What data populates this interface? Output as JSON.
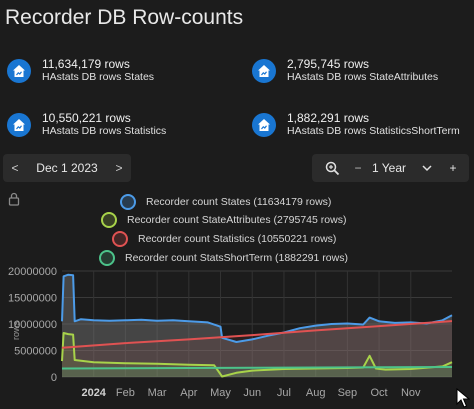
{
  "page": {
    "title": "Recorder DB Row-counts"
  },
  "stats": [
    {
      "value": "11,634,179 rows",
      "label": "HAstats DB rows States"
    },
    {
      "value": "2,795,745 rows",
      "label": "HAstats DB rows StateAttributes"
    },
    {
      "value": "10,550,221 rows",
      "label": "HAstats DB rows Statistics"
    },
    {
      "value": "1,882,291 rows",
      "label": "HAstats DB rows StatisticsShortTerm"
    }
  ],
  "date_nav": {
    "prev": "<",
    "date": "Dec 1 2023",
    "next": ">"
  },
  "period": {
    "zoom_icon": "zoom-in-icon",
    "value": "1 Year",
    "minus": "−",
    "plus": "+"
  },
  "chart_data": {
    "type": "area",
    "legend": [
      {
        "name": "Recorder count States (11634179 rows)",
        "color": "#4c9be8"
      },
      {
        "name": "Recorder count StateAttributes (2795745 rows)",
        "color": "#a8d34a"
      },
      {
        "name": "Recorder count Statistics (10550221 rows)",
        "color": "#e05252"
      },
      {
        "name": "Recorder count StatsShortTerm (1882291 rows)",
        "color": "#4cc38a"
      }
    ],
    "ylabel": "rows",
    "yticks": [
      "20000000",
      "15000000",
      "10000000",
      "5000000",
      "0"
    ],
    "ylim": [
      0,
      20000000
    ],
    "xticks": [
      "2024",
      "Feb",
      "Mar",
      "Apr",
      "May",
      "Jun",
      "Jul",
      "Aug",
      "Sep",
      "Oct",
      "Nov"
    ],
    "xlim": [
      0,
      12.3
    ],
    "series": [
      {
        "name": "Recorder count States (11634179 rows)",
        "x": [
          0.0,
          0.05,
          0.2,
          0.35,
          0.4,
          0.6,
          1.0,
          1.5,
          2.0,
          2.5,
          3.0,
          3.5,
          4.0,
          4.6,
          5.0,
          5.05,
          5.5,
          6.0,
          6.5,
          7.0,
          7.5,
          8.0,
          8.5,
          9.0,
          9.5,
          9.7,
          10.0,
          10.5,
          11.0,
          11.5,
          12.0,
          12.3
        ],
        "values": [
          10500000,
          19000000,
          19300000,
          19200000,
          10500000,
          10900000,
          10700000,
          10600000,
          10700000,
          10800000,
          10600000,
          10700000,
          10500000,
          10300000,
          9500000,
          7400000,
          6600000,
          7100000,
          7800000,
          8400000,
          9200000,
          9700000,
          10000000,
          10100000,
          9900000,
          11200000,
          10500000,
          10200000,
          10300000,
          10100000,
          10700000,
          11634179
        ]
      },
      {
        "name": "Recorder count StateAttributes (2795745 rows)",
        "x": [
          0.0,
          0.05,
          0.2,
          0.35,
          0.4,
          1.0,
          2.0,
          3.0,
          4.0,
          4.8,
          5.05,
          5.5,
          6.0,
          7.0,
          8.0,
          9.0,
          9.5,
          9.7,
          9.9,
          10.2,
          11.0,
          12.0,
          12.3
        ],
        "values": [
          3000000,
          8300000,
          8100000,
          8000000,
          3200000,
          2800000,
          2600000,
          2500000,
          2300000,
          2200000,
          100000,
          800000,
          1200000,
          1500000,
          1600000,
          1700000,
          1800000,
          4000000,
          1600000,
          1400000,
          1500000,
          2000000,
          2795745
        ]
      },
      {
        "name": "Recorder count Statistics (10550221 rows)",
        "x": [
          0.0,
          2.0,
          4.0,
          5.0,
          6.0,
          8.0,
          10.0,
          12.3
        ],
        "values": [
          5500000,
          6400000,
          7100000,
          7500000,
          7900000,
          8800000,
          9600000,
          10550221
        ]
      },
      {
        "name": "Recorder count StatsShortTerm (1882291 rows)",
        "x": [
          0.0,
          2.0,
          4.0,
          6.0,
          8.0,
          10.0,
          12.3
        ],
        "values": [
          1600000,
          1650000,
          1700000,
          1750000,
          1800000,
          1850000,
          1882291
        ]
      }
    ]
  }
}
